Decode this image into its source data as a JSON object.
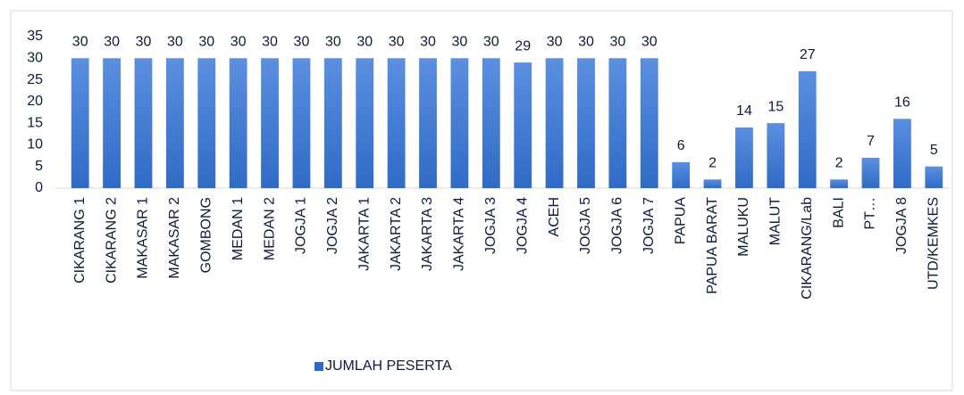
{
  "chart_data": {
    "type": "bar",
    "categories": [
      "CIKARANG 1",
      "CIKARANG 2",
      "MAKASAR 1",
      "MAKASAR 2",
      "GOMBONG",
      "MEDAN 1",
      "MEDAN 2",
      "JOGJA 1",
      "JOGJA 2",
      "JAKARTA 1",
      "JAKARTA 2",
      "JAKARTA 3",
      "JAKARTA 4",
      "JOGJA 3",
      "JOGJA 4",
      "ACEH",
      "JOGJA 5",
      "JOGJA 6",
      "JOGJA 7",
      "PAPUA",
      "PAPUA BARAT",
      "MALUKU",
      "MALUT",
      "CIKARANG/Lab",
      "BALI",
      "PT…",
      "JOGJA 8",
      "UTD/KEMKES"
    ],
    "series": [
      {
        "name": "JUMLAH PESERTA",
        "color": "#2f6bc6",
        "values": [
          30,
          30,
          30,
          30,
          30,
          30,
          30,
          30,
          30,
          30,
          30,
          30,
          30,
          30,
          29,
          30,
          30,
          30,
          30,
          6,
          2,
          14,
          15,
          27,
          2,
          7,
          16,
          5
        ]
      }
    ],
    "ylim": [
      0,
      35
    ],
    "yticks": [
      0,
      5,
      10,
      15,
      20,
      25,
      30,
      35
    ],
    "grid": false,
    "legend": "bottom"
  }
}
